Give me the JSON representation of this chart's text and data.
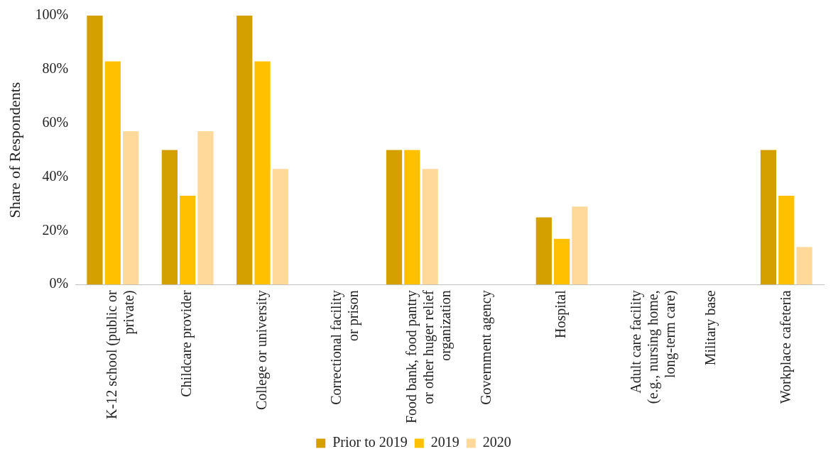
{
  "chart_data": {
    "type": "bar",
    "ylabel": "Share of Respondents",
    "categories": [
      "K-12 school (public or private)",
      "Childcare provider",
      "College or university",
      "Correctional facility or prison",
      "Food bank, food pantry or other huger relief organization",
      "Government agency",
      "Hospital",
      "Adult care facility (e.g., nursing home, long-term care)",
      "Military base",
      "Workplace cafeteria"
    ],
    "series": [
      {
        "name": "Prior to 2019",
        "color": "#d4a000",
        "values": [
          100,
          50,
          100,
          0,
          50,
          0,
          25,
          0,
          0,
          50
        ]
      },
      {
        "name": "2019",
        "color": "#ffc000",
        "values": [
          83,
          33,
          83,
          0,
          50,
          0,
          17,
          0,
          0,
          33
        ]
      },
      {
        "name": "2020",
        "color": "#ffd99a",
        "values": [
          57,
          57,
          43,
          0,
          43,
          0,
          29,
          0,
          0,
          14
        ]
      }
    ],
    "ylim": [
      0,
      100
    ],
    "yticks": [
      {
        "value": 0,
        "label": "0%"
      },
      {
        "value": 20,
        "label": "20%"
      },
      {
        "value": 40,
        "label": "40%"
      },
      {
        "value": 60,
        "label": "60%"
      },
      {
        "value": 80,
        "label": "80%"
      },
      {
        "value": 100,
        "label": "100%"
      }
    ],
    "grid": false,
    "legend": "bottom"
  }
}
